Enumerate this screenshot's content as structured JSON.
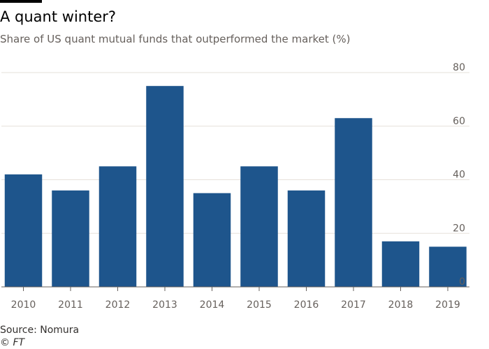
{
  "title": "A quant winter?",
  "subtitle": "Share of US quant mutual funds that outperformed the market (%)",
  "source": "Source: Nomura",
  "copyright": "© FT",
  "colors": {
    "bar": "#1e558c",
    "grid": "#e6e0da",
    "axis": "#66605c",
    "text": "#66605c",
    "rule": "#000000"
  },
  "chart_data": {
    "type": "bar",
    "categories": [
      "2010",
      "2011",
      "2012",
      "2013",
      "2014",
      "2015",
      "2016",
      "2017",
      "2018",
      "2019"
    ],
    "values": [
      42,
      36,
      45,
      75,
      35,
      45,
      36,
      63,
      17,
      15
    ],
    "ylim": [
      0,
      80
    ],
    "yticks": [
      0,
      20,
      40,
      60,
      80
    ],
    "y_axis_side": "right",
    "grid": true,
    "xlabel": "",
    "ylabel": ""
  }
}
